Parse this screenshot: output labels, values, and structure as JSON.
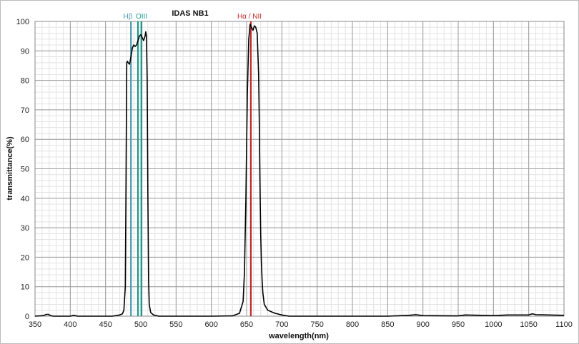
{
  "chart_data": {
    "type": "line",
    "title": "IDAS   NB1",
    "xlabel": "wavelength(nm)",
    "ylabel": "transmittance(%)",
    "xlim": [
      350,
      1100
    ],
    "ylim": [
      0,
      100
    ],
    "x_ticks": [
      350,
      400,
      450,
      500,
      550,
      600,
      650,
      700,
      750,
      800,
      850,
      900,
      950,
      1000,
      1050,
      1100
    ],
    "y_ticks": [
      0,
      10,
      20,
      30,
      40,
      50,
      60,
      70,
      80,
      90,
      100
    ],
    "minor_x_step": 10,
    "minor_y_step": 2,
    "grid": true,
    "series": [
      {
        "color": "#000000",
        "x": [
          350,
          362,
          366,
          369,
          372,
          376,
          400,
          405,
          410,
          460,
          470,
          474,
          476,
          478,
          479,
          480,
          481,
          482,
          484,
          486,
          488,
          490,
          492,
          494,
          496,
          498,
          500,
          502,
          504,
          506,
          507,
          508,
          509,
          510,
          511,
          512,
          514,
          518,
          525,
          560,
          600,
          630,
          640,
          645,
          647,
          649,
          651,
          653,
          655,
          657,
          659,
          661,
          663,
          665,
          667,
          668,
          669,
          670,
          671,
          672,
          673,
          675,
          680,
          690,
          700,
          710,
          850,
          880,
          890,
          900,
          950,
          960,
          1000,
          1020,
          1050,
          1055,
          1060,
          1100
        ],
        "values": [
          0,
          0.2,
          0.6,
          0.6,
          0.2,
          0,
          0,
          0.3,
          0,
          0,
          0.4,
          0.8,
          2,
          10,
          45,
          86,
          86.5,
          86,
          85.5,
          88,
          91,
          92,
          91.5,
          92,
          93.5,
          95,
          95.5,
          94.5,
          93.5,
          95,
          96.5,
          95,
          80,
          40,
          12,
          4,
          1.2,
          0.4,
          0,
          0,
          0,
          0.1,
          1,
          5,
          15,
          40,
          75,
          94,
          99,
          98,
          97,
          98.5,
          98,
          96,
          82,
          65,
          45,
          28,
          18,
          12,
          8,
          4,
          2,
          1,
          0.4,
          0,
          0,
          0.3,
          0.5,
          0.2,
          0.1,
          0.4,
          0.2,
          0.4,
          0.4,
          0.8,
          0.5,
          0.3
        ]
      }
    ],
    "reference_lines": [
      {
        "label": "Hβ",
        "x": 486,
        "color": "#4a9aaa"
      },
      {
        "label": "OIII",
        "x": 496,
        "color": "#1a9a8a"
      },
      {
        "label": "",
        "x": 501,
        "color": "#1a9a8a"
      },
      {
        "label": "Hα / NII",
        "x": 656,
        "color": "#c0282a"
      }
    ]
  }
}
